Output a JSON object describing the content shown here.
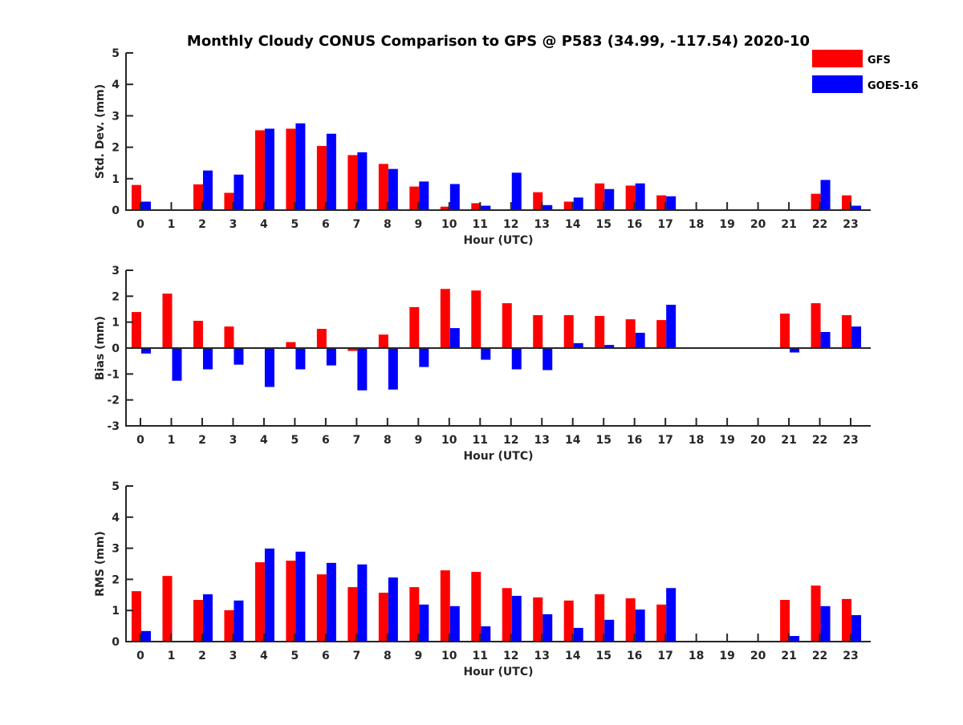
{
  "chart_data": {
    "type": "bar",
    "title": "Monthly Cloudy CONUS Comparison to GPS @ P583 (34.99, -117.54) 2020-10",
    "legend": {
      "placement": "top-right",
      "entries": [
        {
          "name": "GFS",
          "color": "#ff0000"
        },
        {
          "name": "GOES-16",
          "color": "#0000ff"
        }
      ]
    },
    "categories": [
      "0",
      "1",
      "2",
      "3",
      "4",
      "5",
      "6",
      "7",
      "8",
      "9",
      "10",
      "11",
      "12",
      "13",
      "14",
      "15",
      "16",
      "17",
      "18",
      "19",
      "20",
      "21",
      "22",
      "23"
    ],
    "panels": [
      {
        "id": "stddev",
        "xlabel": "Hour (UTC)",
        "ylabel": "Std. Dev. (mm)",
        "ylim": [
          0,
          5
        ],
        "yticks": [
          0,
          1,
          2,
          3,
          4,
          5
        ],
        "series": [
          {
            "name": "GFS",
            "values": [
              0.8,
              null,
              0.82,
              0.55,
              2.54,
              2.59,
              2.04,
              1.75,
              1.47,
              0.75,
              0.11,
              0.22,
              0.02,
              0.57,
              0.27,
              0.85,
              0.78,
              0.47,
              null,
              null,
              null,
              null,
              0.52,
              0.47
            ]
          },
          {
            "name": "GOES-16",
            "values": [
              0.27,
              null,
              1.26,
              1.13,
              2.59,
              2.76,
              2.43,
              1.84,
              1.31,
              0.91,
              0.83,
              0.14,
              1.19,
              0.16,
              0.4,
              0.67,
              0.85,
              0.44,
              null,
              null,
              null,
              null,
              0.96,
              0.14
            ]
          }
        ]
      },
      {
        "id": "bias",
        "xlabel": "Hour (UTC)",
        "ylabel": "Bias (mm)",
        "ylim": [
          -3,
          3
        ],
        "yticks": [
          -3,
          -2,
          -1,
          0,
          1,
          2,
          3
        ],
        "series": [
          {
            "name": "GFS",
            "values": [
              1.39,
              2.1,
              1.05,
              0.83,
              null,
              0.23,
              0.74,
              -0.11,
              0.52,
              1.58,
              2.28,
              2.22,
              1.73,
              1.27,
              1.27,
              1.24,
              1.11,
              1.08,
              null,
              null,
              null,
              1.33,
              1.73,
              1.27
            ]
          },
          {
            "name": "GOES-16",
            "values": [
              -0.21,
              -1.26,
              -0.82,
              -0.64,
              -1.5,
              -0.82,
              -0.67,
              -1.63,
              -1.6,
              -0.73,
              0.77,
              -0.45,
              -0.82,
              -0.85,
              0.19,
              0.12,
              0.59,
              1.67,
              null,
              null,
              null,
              -0.17,
              0.62,
              0.83
            ]
          }
        ]
      },
      {
        "id": "rms",
        "xlabel": "Hour (UTC)",
        "ylabel": "RMS (mm)",
        "ylim": [
          0,
          5
        ],
        "yticks": [
          0,
          1,
          2,
          3,
          4,
          5
        ],
        "series": [
          {
            "name": "GFS",
            "values": [
              1.62,
              2.11,
              1.34,
              1.01,
              2.55,
              2.6,
              2.16,
              1.75,
              1.57,
              1.75,
              2.29,
              2.24,
              1.72,
              1.42,
              1.32,
              1.52,
              1.39,
              1.19,
              null,
              null,
              null,
              1.34,
              1.8,
              1.37
            ]
          },
          {
            "name": "GOES-16",
            "values": [
              0.34,
              null,
              1.52,
              1.32,
              2.99,
              2.89,
              2.53,
              2.48,
              2.06,
              1.19,
              1.14,
              0.49,
              1.47,
              0.88,
              0.44,
              0.7,
              1.03,
              1.72,
              null,
              null,
              null,
              0.18,
              1.14,
              0.85
            ]
          }
        ]
      }
    ]
  }
}
